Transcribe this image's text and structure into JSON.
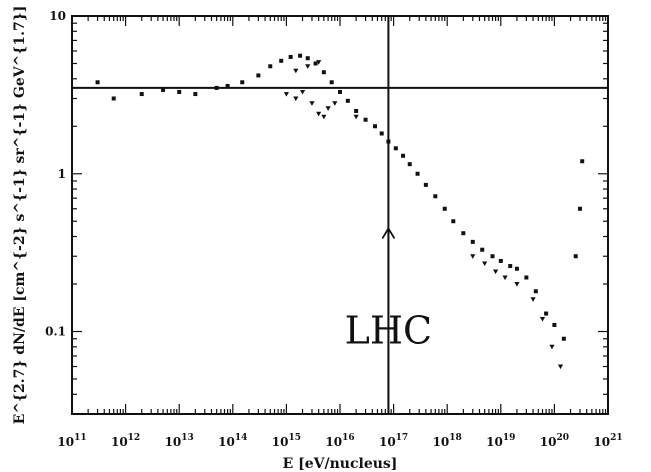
{
  "chart_data": {
    "type": "scatter",
    "title": "",
    "xlabel": "E [eV/nucleus]",
    "ylabel": "E^{2.7} dN/dE [cm^{-2} s^{-1} sr^{-1} GeV^{1.7}]",
    "xscale": "log",
    "yscale": "log",
    "xlim": [
      100000000000.0,
      1e+21
    ],
    "ylim": [
      0.03,
      10
    ],
    "x_ticks": [
      {
        "base": "10",
        "exp": "11"
      },
      {
        "base": "10",
        "exp": "12"
      },
      {
        "base": "10",
        "exp": "13"
      },
      {
        "base": "10",
        "exp": "14"
      },
      {
        "base": "10",
        "exp": "15"
      },
      {
        "base": "10",
        "exp": "16"
      },
      {
        "base": "10",
        "exp": "17"
      },
      {
        "base": "10",
        "exp": "18"
      },
      {
        "base": "10",
        "exp": "19"
      },
      {
        "base": "10",
        "exp": "20"
      },
      {
        "base": "10",
        "exp": "21"
      }
    ],
    "y_ticks": [
      {
        "value": 0.1,
        "label": "0.1"
      },
      {
        "value": 1,
        "label": "1"
      },
      {
        "value": 10,
        "label": "10"
      }
    ],
    "reference_lines": [
      {
        "orientation": "horizontal",
        "y": 3.5
      },
      {
        "orientation": "vertical",
        "x": 8e+16
      }
    ],
    "annotation": {
      "text": "LHC",
      "x": 8e+16,
      "y": 0.1,
      "arrow_from_y": 0.03,
      "arrow_to_y": 0.45
    },
    "series": [
      {
        "marker": "square",
        "points": [
          [
            300000000000.0,
            3.8
          ],
          [
            600000000000.0,
            3.0
          ],
          [
            2000000000000.0,
            3.2
          ],
          [
            5000000000000.0,
            3.4
          ],
          [
            10000000000000.0,
            3.3
          ],
          [
            20000000000000.0,
            3.2
          ],
          [
            50000000000000.0,
            3.5
          ],
          [
            80000000000000.0,
            3.6
          ],
          [
            150000000000000.0,
            3.8
          ],
          [
            300000000000000.0,
            4.2
          ],
          [
            500000000000000.0,
            4.8
          ],
          [
            800000000000000.0,
            5.2
          ],
          [
            1200000000000000.0,
            5.5
          ],
          [
            1800000000000000.0,
            5.6
          ],
          [
            2500000000000000.0,
            5.4
          ],
          [
            3500000000000000.0,
            5.0
          ],
          [
            5000000000000000.0,
            4.4
          ],
          [
            7000000000000000.0,
            3.8
          ],
          [
            1e+16,
            3.3
          ],
          [
            1.4e+16,
            2.9
          ],
          [
            2e+16,
            2.5
          ],
          [
            3e+16,
            2.2
          ],
          [
            4.5e+16,
            2.0
          ],
          [
            6e+16,
            1.8
          ],
          [
            8e+16,
            1.6
          ],
          [
            1.1e+17,
            1.45
          ],
          [
            1.5e+17,
            1.3
          ],
          [
            2e+17,
            1.15
          ],
          [
            2.8e+17,
            1.0
          ],
          [
            4e+17,
            0.85
          ],
          [
            6e+17,
            0.72
          ],
          [
            9e+17,
            0.6
          ],
          [
            1.3e+18,
            0.5
          ],
          [
            2e+18,
            0.42
          ],
          [
            3e+18,
            0.37
          ],
          [
            4.5e+18,
            0.33
          ],
          [
            7e+18,
            0.3
          ],
          [
            1e+19,
            0.28
          ],
          [
            1.5e+19,
            0.26
          ],
          [
            2e+19,
            0.25
          ],
          [
            3e+19,
            0.22
          ],
          [
            4.5e+19,
            0.18
          ],
          [
            7e+19,
            0.13
          ],
          [
            1e+20,
            0.11
          ],
          [
            1.5e+20,
            0.09
          ],
          [
            2.5e+20,
            0.3
          ],
          [
            3e+20,
            0.6
          ],
          [
            3.3e+20,
            1.2
          ]
        ]
      },
      {
        "marker": "triangle-down",
        "points": [
          [
            1000000000000000.0,
            3.2
          ],
          [
            1500000000000000.0,
            3.0
          ],
          [
            2000000000000000.0,
            3.3
          ],
          [
            3000000000000000.0,
            2.8
          ],
          [
            4000000000000000.0,
            2.4
          ],
          [
            5000000000000000.0,
            2.3
          ],
          [
            6000000000000000.0,
            2.6
          ],
          [
            8000000000000000.0,
            2.8
          ],
          [
            1500000000000000.0,
            4.5
          ],
          [
            2500000000000000.0,
            4.8
          ],
          [
            4000000000000000.0,
            5.1
          ],
          [
            2e+16,
            2.3
          ],
          [
            3e+18,
            0.3
          ],
          [
            5e+18,
            0.27
          ],
          [
            8e+18,
            0.24
          ],
          [
            1.2e+19,
            0.22
          ],
          [
            2e+19,
            0.2
          ],
          [
            4e+19,
            0.16
          ],
          [
            6e+19,
            0.12
          ],
          [
            9e+19,
            0.08
          ],
          [
            1.3e+20,
            0.06
          ]
        ]
      }
    ]
  }
}
